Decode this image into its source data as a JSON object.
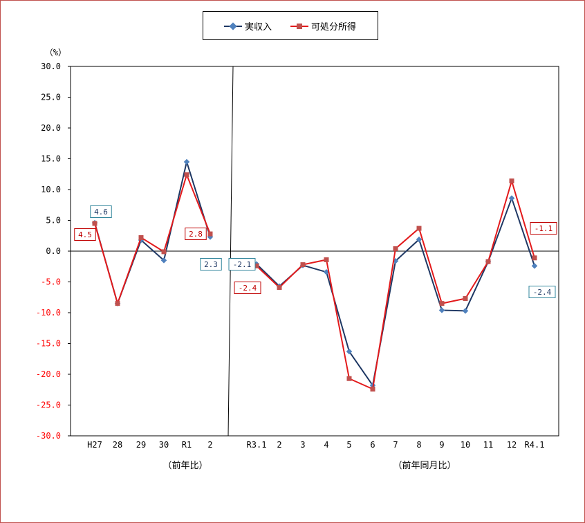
{
  "chart_data": {
    "type": "line",
    "unit_label": "（%）",
    "ylim": [
      -30,
      30
    ],
    "y_ticks": [
      30,
      25,
      20,
      15,
      10,
      5,
      0,
      -5,
      -10,
      -15,
      -20,
      -25,
      -30
    ],
    "y_tick_labels": [
      "30.0",
      "25.0",
      "20.0",
      "15.0",
      "10.0",
      "5.0",
      "0.0",
      "-5.0",
      "-10.0",
      "-15.0",
      "-20.0",
      "-25.0",
      "-30.0"
    ],
    "negative_tick_color": "#ff0000",
    "legend_position": "top-center",
    "categories": [
      "H27",
      "28",
      "29",
      "30",
      "R1",
      "2",
      "R3.1",
      "2",
      "3",
      "4",
      "5",
      "6",
      "7",
      "8",
      "9",
      "10",
      "11",
      "12",
      "R4.1"
    ],
    "group_labels": [
      "（前年比）",
      "（前年同月比）"
    ],
    "series": [
      {
        "name": "実収入",
        "color": "#1f3864",
        "marker": "diamond",
        "marker_color": "#4f81bd",
        "values": [
          4.6,
          -8.5,
          1.8,
          -1.5,
          14.5,
          2.3,
          -2.1,
          -5.7,
          -2.3,
          -3.4,
          -16.3,
          -21.8,
          -1.6,
          1.9,
          -9.6,
          -9.7,
          -1.7,
          8.6,
          -2.4
        ]
      },
      {
        "name": "可処分所得",
        "color": "#e31a1c",
        "marker": "square",
        "marker_color": "#c0504d",
        "values": [
          4.5,
          -8.5,
          2.2,
          -0.1,
          12.4,
          2.8,
          -2.4,
          -5.9,
          -2.2,
          -1.4,
          -20.7,
          -22.4,
          0.4,
          3.7,
          -8.5,
          -7.7,
          -1.7,
          11.4,
          -1.1
        ]
      }
    ],
    "data_labels": [
      {
        "text": "4.6",
        "series": 0,
        "index": 0
      },
      {
        "text": "4.5",
        "series": 1,
        "index": 0
      },
      {
        "text": "2.8",
        "series": 1,
        "index": 5
      },
      {
        "text": "2.3",
        "series": 0,
        "index": 5
      },
      {
        "text": "-2.1",
        "series": 0,
        "index": 6
      },
      {
        "text": "-2.4",
        "series": 1,
        "index": 6
      },
      {
        "text": "-1.1",
        "series": 1,
        "index": 18
      },
      {
        "text": "-2.4",
        "series": 0,
        "index": 18
      }
    ]
  }
}
